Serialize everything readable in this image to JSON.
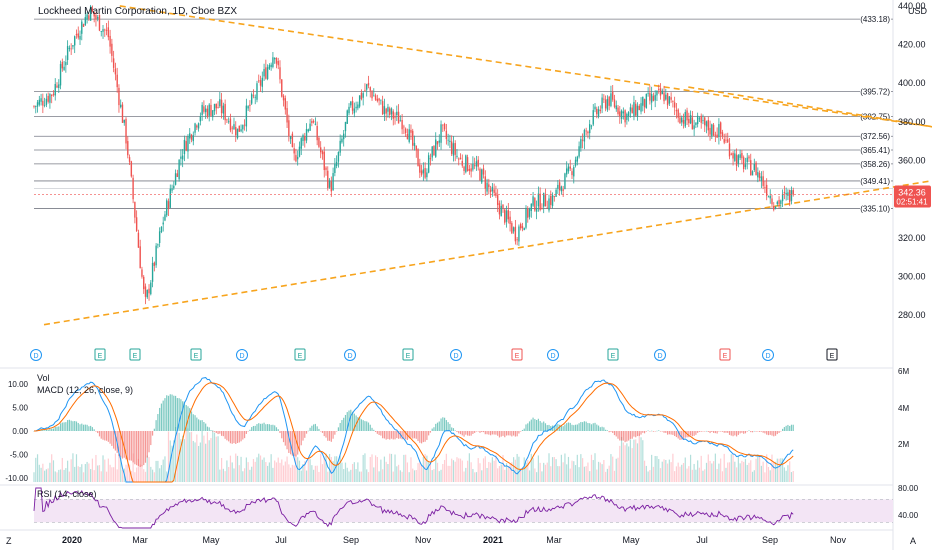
{
  "header": {
    "title": "Lockheed Martin Corporation, 1D, Cboe BZX",
    "currency": "USD"
  },
  "colors": {
    "up": "#26a69a",
    "down": "#ef5350",
    "trendline": "#f7a41d",
    "hline": "#787b86",
    "macd": "#2196f3",
    "signal": "#ff6d00",
    "rsi": "#7b1fa2",
    "rsi_band": "#f3e5f5",
    "price_badge": "#ef5350"
  },
  "price_axis": {
    "ticks": [
      "440.00",
      "420.00",
      "400.00",
      "380.00",
      "360.00",
      "340.00",
      "320.00",
      "300.00",
      "280.00"
    ],
    "level_labels": [
      "(433.18)",
      "(395.72)",
      "(382.75)",
      "(372.56)",
      "(365.41)",
      "(358.26)",
      "(349.41)",
      "(335.10)"
    ],
    "current_price": "342.36",
    "countdown": "02:51:41"
  },
  "events": {
    "markers": [
      "D",
      "E",
      "E",
      "E",
      "D",
      "E",
      "D",
      "E",
      "D",
      "E",
      "D",
      "E",
      "D",
      "E",
      "D",
      "E"
    ]
  },
  "indicators": {
    "vol_label": "Vol",
    "macd_label": "MACD (12, 26, close, 9)",
    "macd_ticks": [
      "10.00",
      "5.00",
      "0.00",
      "-5.00",
      "-10.00"
    ],
    "vol_ticks": [
      "6M",
      "4M",
      "2M"
    ],
    "rsi_label": "RSI (14, close)",
    "rsi_ticks": [
      "80.00",
      "40.00"
    ]
  },
  "time_axis": {
    "labels": [
      "2020",
      "Mar",
      "May",
      "Jul",
      "Sep",
      "Nov",
      "2021",
      "Mar",
      "May",
      "Jul",
      "Sep",
      "Nov"
    ]
  },
  "footer": {
    "left_icon_label": "Z",
    "right_icon_label": "A"
  },
  "chart_data": {
    "type": "candlestick",
    "title": "Lockheed Martin Corporation, 1D, Cboe BZX",
    "ylim": [
      265,
      441
    ],
    "x_labels": [
      "2020",
      "Mar",
      "May",
      "Jul",
      "Sep",
      "Nov",
      "2021",
      "Mar",
      "May",
      "Jul",
      "Sep",
      "Nov"
    ],
    "price_path": [
      {
        "t": "2019-12",
        "v": 388
      },
      {
        "t": "2020-01",
        "v": 395
      },
      {
        "t": "2020-01",
        "v": 420
      },
      {
        "t": "2020-02",
        "v": 438
      },
      {
        "t": "2020-02",
        "v": 425
      },
      {
        "t": "2020-03",
        "v": 370
      },
      {
        "t": "2020-03",
        "v": 285
      },
      {
        "t": "2020-03",
        "v": 330
      },
      {
        "t": "2020-04",
        "v": 365
      },
      {
        "t": "2020-04",
        "v": 385
      },
      {
        "t": "2020-05",
        "v": 388
      },
      {
        "t": "2020-05",
        "v": 375
      },
      {
        "t": "2020-06",
        "v": 395
      },
      {
        "t": "2020-06",
        "v": 417
      },
      {
        "t": "2020-06",
        "v": 360
      },
      {
        "t": "2020-07",
        "v": 382
      },
      {
        "t": "2020-07",
        "v": 345
      },
      {
        "t": "2020-08",
        "v": 385
      },
      {
        "t": "2020-08",
        "v": 398
      },
      {
        "t": "2020-09",
        "v": 385
      },
      {
        "t": "2020-10",
        "v": 380
      },
      {
        "t": "2020-10",
        "v": 352
      },
      {
        "t": "2020-11",
        "v": 375
      },
      {
        "t": "2020-11",
        "v": 360
      },
      {
        "t": "2020-12",
        "v": 355
      },
      {
        "t": "2021-01",
        "v": 338
      },
      {
        "t": "2021-01",
        "v": 322
      },
      {
        "t": "2021-02",
        "v": 338
      },
      {
        "t": "2021-02",
        "v": 340
      },
      {
        "t": "2021-03",
        "v": 355
      },
      {
        "t": "2021-04",
        "v": 380
      },
      {
        "t": "2021-04",
        "v": 392
      },
      {
        "t": "2021-05",
        "v": 383
      },
      {
        "t": "2021-05",
        "v": 390
      },
      {
        "t": "2021-06",
        "v": 394
      },
      {
        "t": "2021-06",
        "v": 382
      },
      {
        "t": "2021-07",
        "v": 378
      },
      {
        "t": "2021-07",
        "v": 375
      },
      {
        "t": "2021-08",
        "v": 360
      },
      {
        "t": "2021-08",
        "v": 355
      },
      {
        "t": "2021-09",
        "v": 338
      },
      {
        "t": "2021-09",
        "v": 342.36
      }
    ],
    "horizontal_levels": [
      433.18,
      395.72,
      382.75,
      372.56,
      365.41,
      358.26,
      349.41,
      335.1
    ],
    "trendlines": [
      {
        "from": {
          "t": "2019-12",
          "v": 275
        },
        "to": {
          "t": "2021-10",
          "v": 350
        }
      },
      {
        "from": {
          "t": "2020-02",
          "v": 440
        },
        "to": {
          "t": "2021-10",
          "v": 377
        }
      },
      {
        "from": {
          "t": "2021-05",
          "v": 398
        },
        "to": {
          "t": "2021-10",
          "v": 377
        }
      }
    ],
    "last_price": 342.36
  }
}
